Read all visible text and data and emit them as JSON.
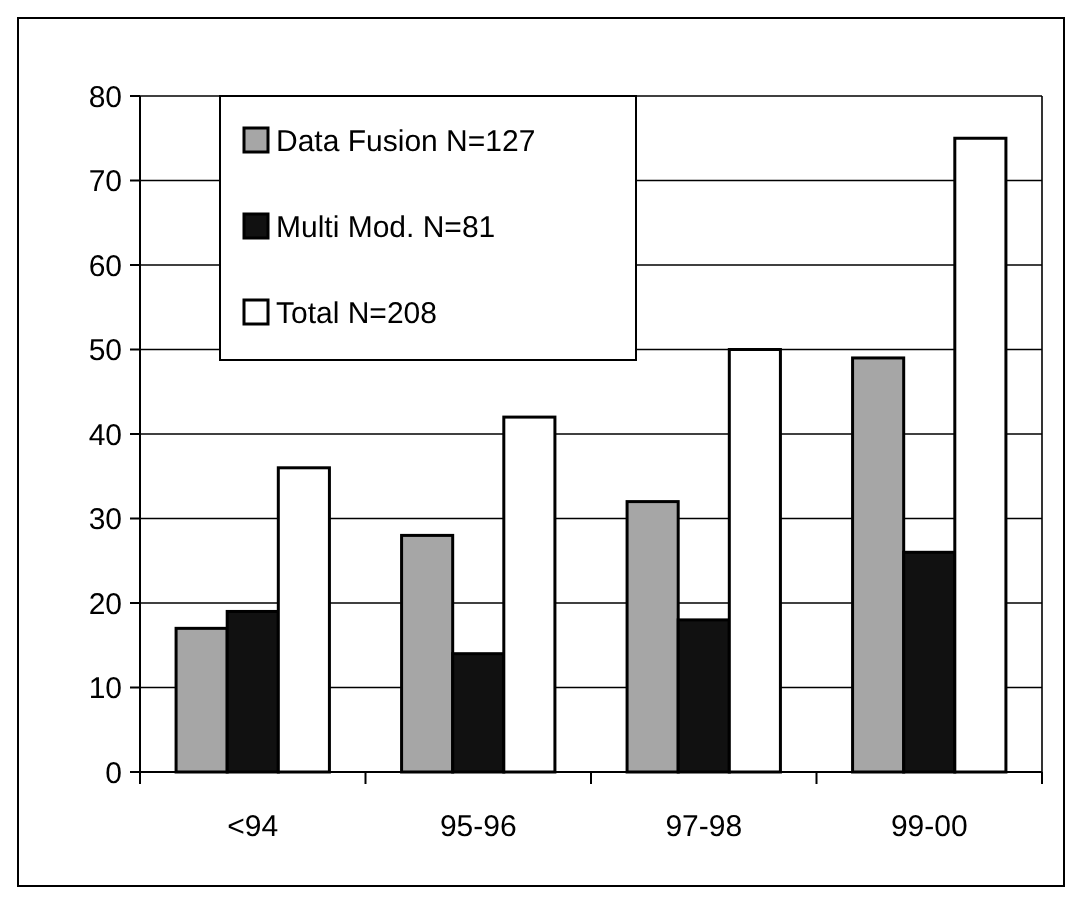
{
  "chart_data": {
    "type": "bar",
    "categories": [
      "<94",
      "95-96",
      "97-98",
      "99-00"
    ],
    "series": [
      {
        "name": "Data Fusion N=127",
        "color": "#a6a6a6",
        "values": [
          17,
          28,
          32,
          49
        ]
      },
      {
        "name": "Multi Mod. N=81",
        "color": "#111111",
        "values": [
          19,
          14,
          18,
          26
        ]
      },
      {
        "name": "Total N=208",
        "color": "#ffffff",
        "values": [
          36,
          42,
          50,
          75
        ]
      }
    ],
    "ylim": [
      0,
      80
    ],
    "yticks": [
      0,
      10,
      20,
      30,
      40,
      50,
      60,
      70,
      80
    ],
    "grid": "y",
    "legend": "top left"
  }
}
